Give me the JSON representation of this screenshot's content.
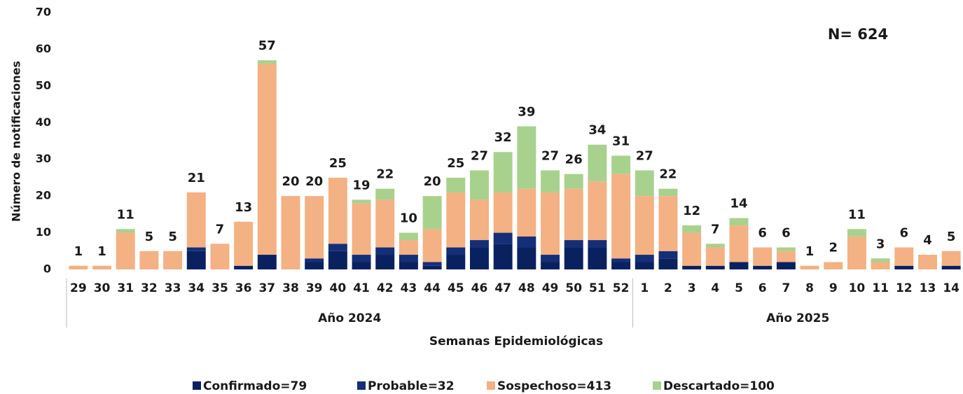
{
  "chart_data": {
    "type": "stacked-bar",
    "annotation": "N= 624",
    "y_label": "Número de notificaciones",
    "x_label": "Semanas Epidemiológicas",
    "groups": [
      "Año 2024",
      "Año 2025"
    ],
    "categories": [
      "29",
      "30",
      "31",
      "32",
      "33",
      "34",
      "35",
      "36",
      "37",
      "38",
      "39",
      "40",
      "41",
      "42",
      "43",
      "44",
      "45",
      "46",
      "47",
      "48",
      "49",
      "50",
      "51",
      "52",
      "1",
      "2",
      "3",
      "4",
      "5",
      "6",
      "7",
      "8",
      "9",
      "10",
      "11",
      "12",
      "13",
      "14"
    ],
    "series": [
      {
        "name": "Confirmado=79",
        "color": "#0a2160",
        "values": [
          0,
          0,
          0,
          0,
          0,
          5,
          0,
          1,
          4,
          0,
          2,
          5,
          2,
          4,
          2,
          1,
          4,
          6,
          7,
          6,
          2,
          6,
          6,
          2,
          2,
          3,
          1,
          1,
          2,
          1,
          2,
          0,
          0,
          0,
          0,
          1,
          0,
          1
        ]
      },
      {
        "name": "Probable=32",
        "color": "#142f78",
        "values": [
          0,
          0,
          0,
          0,
          0,
          1,
          0,
          0,
          0,
          0,
          1,
          2,
          2,
          2,
          2,
          1,
          2,
          2,
          3,
          3,
          2,
          2,
          2,
          1,
          2,
          2,
          0,
          0,
          0,
          0,
          0,
          0,
          0,
          0,
          0,
          0,
          0,
          0
        ]
      },
      {
        "name": "Sospechoso=413",
        "color": "#f4b183",
        "values": [
          1,
          1,
          10,
          5,
          5,
          15,
          7,
          12,
          52,
          20,
          17,
          18,
          14,
          13,
          4,
          9,
          15,
          11,
          11,
          13,
          17,
          14,
          16,
          23,
          16,
          15,
          9,
          5,
          10,
          5,
          3,
          1,
          2,
          9,
          2,
          5,
          4,
          4
        ]
      },
      {
        "name": "Descartado=100",
        "color": "#a9d18e",
        "values": [
          0,
          0,
          1,
          0,
          0,
          0,
          0,
          0,
          1,
          0,
          0,
          0,
          1,
          3,
          2,
          9,
          4,
          8,
          11,
          17,
          6,
          4,
          10,
          5,
          7,
          2,
          2,
          1,
          2,
          0,
          1,
          0,
          0,
          2,
          1,
          0,
          0,
          0
        ]
      }
    ],
    "totals": [
      1,
      1,
      11,
      5,
      5,
      21,
      7,
      13,
      57,
      20,
      20,
      25,
      19,
      22,
      10,
      20,
      25,
      27,
      32,
      39,
      27,
      26,
      34,
      31,
      27,
      22,
      12,
      7,
      14,
      6,
      6,
      1,
      2,
      11,
      3,
      6,
      4,
      5
    ],
    "ylim": [
      0,
      70
    ],
    "yticks": [
      0,
      10,
      20,
      30,
      40,
      50,
      60,
      70
    ]
  }
}
